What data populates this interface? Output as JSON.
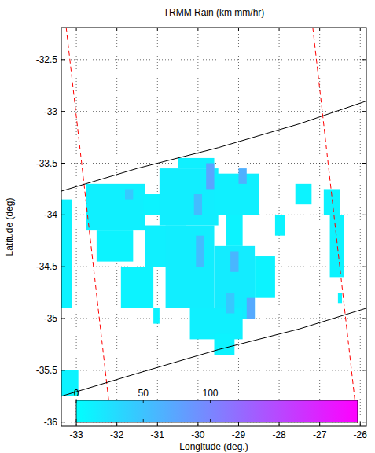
{
  "chart_data": {
    "type": "heatmap",
    "title": "TRMM Rain (km mm/hr)",
    "x_label": "Longitude (deg.)",
    "y_label": "Latitude (deg)",
    "xlim": [
      -33.37,
      -25.85
    ],
    "ylim": [
      -36.04,
      -32.19
    ],
    "xticks": [
      -33,
      -32,
      -31,
      -30,
      -29,
      -28,
      -27,
      -26
    ],
    "yticks": [
      -36,
      -35.5,
      -35,
      -34.5,
      -34,
      -33.5,
      -33,
      -32.5
    ],
    "grid": true,
    "cells": [
      {
        "lon": [
          -33.37,
          -33.1
        ],
        "lat": [
          -34.9,
          -33.85
        ],
        "value": 10
      },
      {
        "lon": [
          -33.37,
          -32.95
        ],
        "lat": [
          -35.75,
          -35.5
        ],
        "value": 10
      },
      {
        "lon": [
          -32.75,
          -31.3
        ],
        "lat": [
          -34.15,
          -33.7
        ],
        "value": 12
      },
      {
        "lon": [
          -32.5,
          -31.6
        ],
        "lat": [
          -34.45,
          -34.15
        ],
        "value": 10
      },
      {
        "lon": [
          -31.35,
          -30.9
        ],
        "lat": [
          -34.0,
          -33.8
        ],
        "value": 10
      },
      {
        "lon": [
          -30.95,
          -29.5
        ],
        "lat": [
          -34.1,
          -33.55
        ],
        "value": 14
      },
      {
        "lon": [
          -30.5,
          -29.6
        ],
        "lat": [
          -33.55,
          -33.45
        ],
        "value": 12
      },
      {
        "lon": [
          -29.6,
          -28.5
        ],
        "lat": [
          -34.0,
          -33.6
        ],
        "value": 12
      },
      {
        "lon": [
          -31.3,
          -30.3
        ],
        "lat": [
          -34.5,
          -34.1
        ],
        "value": 12
      },
      {
        "lon": [
          -31.9,
          -31.1
        ],
        "lat": [
          -34.9,
          -34.5
        ],
        "value": 10
      },
      {
        "lon": [
          -30.8,
          -29.6
        ],
        "lat": [
          -34.9,
          -34.1
        ],
        "value": 14
      },
      {
        "lon": [
          -29.6,
          -28.6
        ],
        "lat": [
          -35.0,
          -34.3
        ],
        "value": 16
      },
      {
        "lon": [
          -30.2,
          -28.9
        ],
        "lat": [
          -35.2,
          -34.9
        ],
        "value": 12
      },
      {
        "lon": [
          -29.6,
          -29.1
        ],
        "lat": [
          -35.35,
          -35.15
        ],
        "value": 10
      },
      {
        "lon": [
          -29.3,
          -28.9
        ],
        "lat": [
          -34.3,
          -34.0
        ],
        "value": 10
      },
      {
        "lon": [
          -28.6,
          -28.1
        ],
        "lat": [
          -34.8,
          -34.4
        ],
        "value": 10
      },
      {
        "lon": [
          -28.1,
          -27.85
        ],
        "lat": [
          -34.2,
          -34.0
        ],
        "value": 10
      },
      {
        "lon": [
          -27.6,
          -27.2
        ],
        "lat": [
          -33.9,
          -33.7
        ],
        "value": 10
      },
      {
        "lon": [
          -26.9,
          -26.5
        ],
        "lat": [
          -34.0,
          -33.75
        ],
        "value": 10
      },
      {
        "lon": [
          -26.75,
          -26.4
        ],
        "lat": [
          -34.6,
          -34.0
        ],
        "value": 10
      },
      {
        "lon": [
          -26.55,
          -26.45
        ],
        "lat": [
          -34.85,
          -34.75
        ],
        "value": 10
      },
      {
        "lon": [
          -31.1,
          -30.95
        ],
        "lat": [
          -35.05,
          -34.9
        ],
        "value": 10
      },
      {
        "lon": [
          -29.8,
          -29.6
        ],
        "lat": [
          -33.75,
          -33.5
        ],
        "value": 75
      },
      {
        "lon": [
          -29.0,
          -28.8
        ],
        "lat": [
          -33.7,
          -33.55
        ],
        "value": 65
      },
      {
        "lon": [
          -30.1,
          -29.9
        ],
        "lat": [
          -34.0,
          -33.8
        ],
        "value": 55
      },
      {
        "lon": [
          -30.05,
          -29.85
        ],
        "lat": [
          -34.5,
          -34.2
        ],
        "value": 55
      },
      {
        "lon": [
          -29.2,
          -29.0
        ],
        "lat": [
          -34.55,
          -34.35
        ],
        "value": 60
      },
      {
        "lon": [
          -28.8,
          -28.6
        ],
        "lat": [
          -35.0,
          -34.8
        ],
        "value": 70
      },
      {
        "lon": [
          -31.8,
          -31.6
        ],
        "lat": [
          -33.85,
          -33.75
        ],
        "value": 45
      },
      {
        "lon": [
          -29.3,
          -29.1
        ],
        "lat": [
          -34.95,
          -34.75
        ],
        "value": 45
      }
    ],
    "colorbar": {
      "clim": [
        0,
        210
      ],
      "ticks": [
        0,
        50,
        100
      ]
    },
    "series": [
      {
        "x": [
          -33.25,
          -32.13
        ],
        "values": [
          -32.19,
          -36.04
        ],
        "color": "#ff0000",
        "line_style": "dashed"
      },
      {
        "x": [
          -27.17,
          -26.06
        ],
        "values": [
          -32.19,
          -36.04
        ],
        "color": "#ff0000",
        "line_style": "dashed"
      },
      {
        "x": [
          -33.37,
          -31.5,
          -29.5,
          -27.5,
          -25.85
        ],
        "values": [
          -33.77,
          -33.55,
          -33.35,
          -33.12,
          -32.9
        ],
        "color": "#000000",
        "line_style": "solid"
      },
      {
        "x": [
          -33.37,
          -31.5,
          -29.5,
          -27.5,
          -25.85
        ],
        "values": [
          -35.75,
          -35.53,
          -35.3,
          -35.1,
          -34.9
        ],
        "color": "#000000",
        "line_style": "solid"
      }
    ]
  }
}
